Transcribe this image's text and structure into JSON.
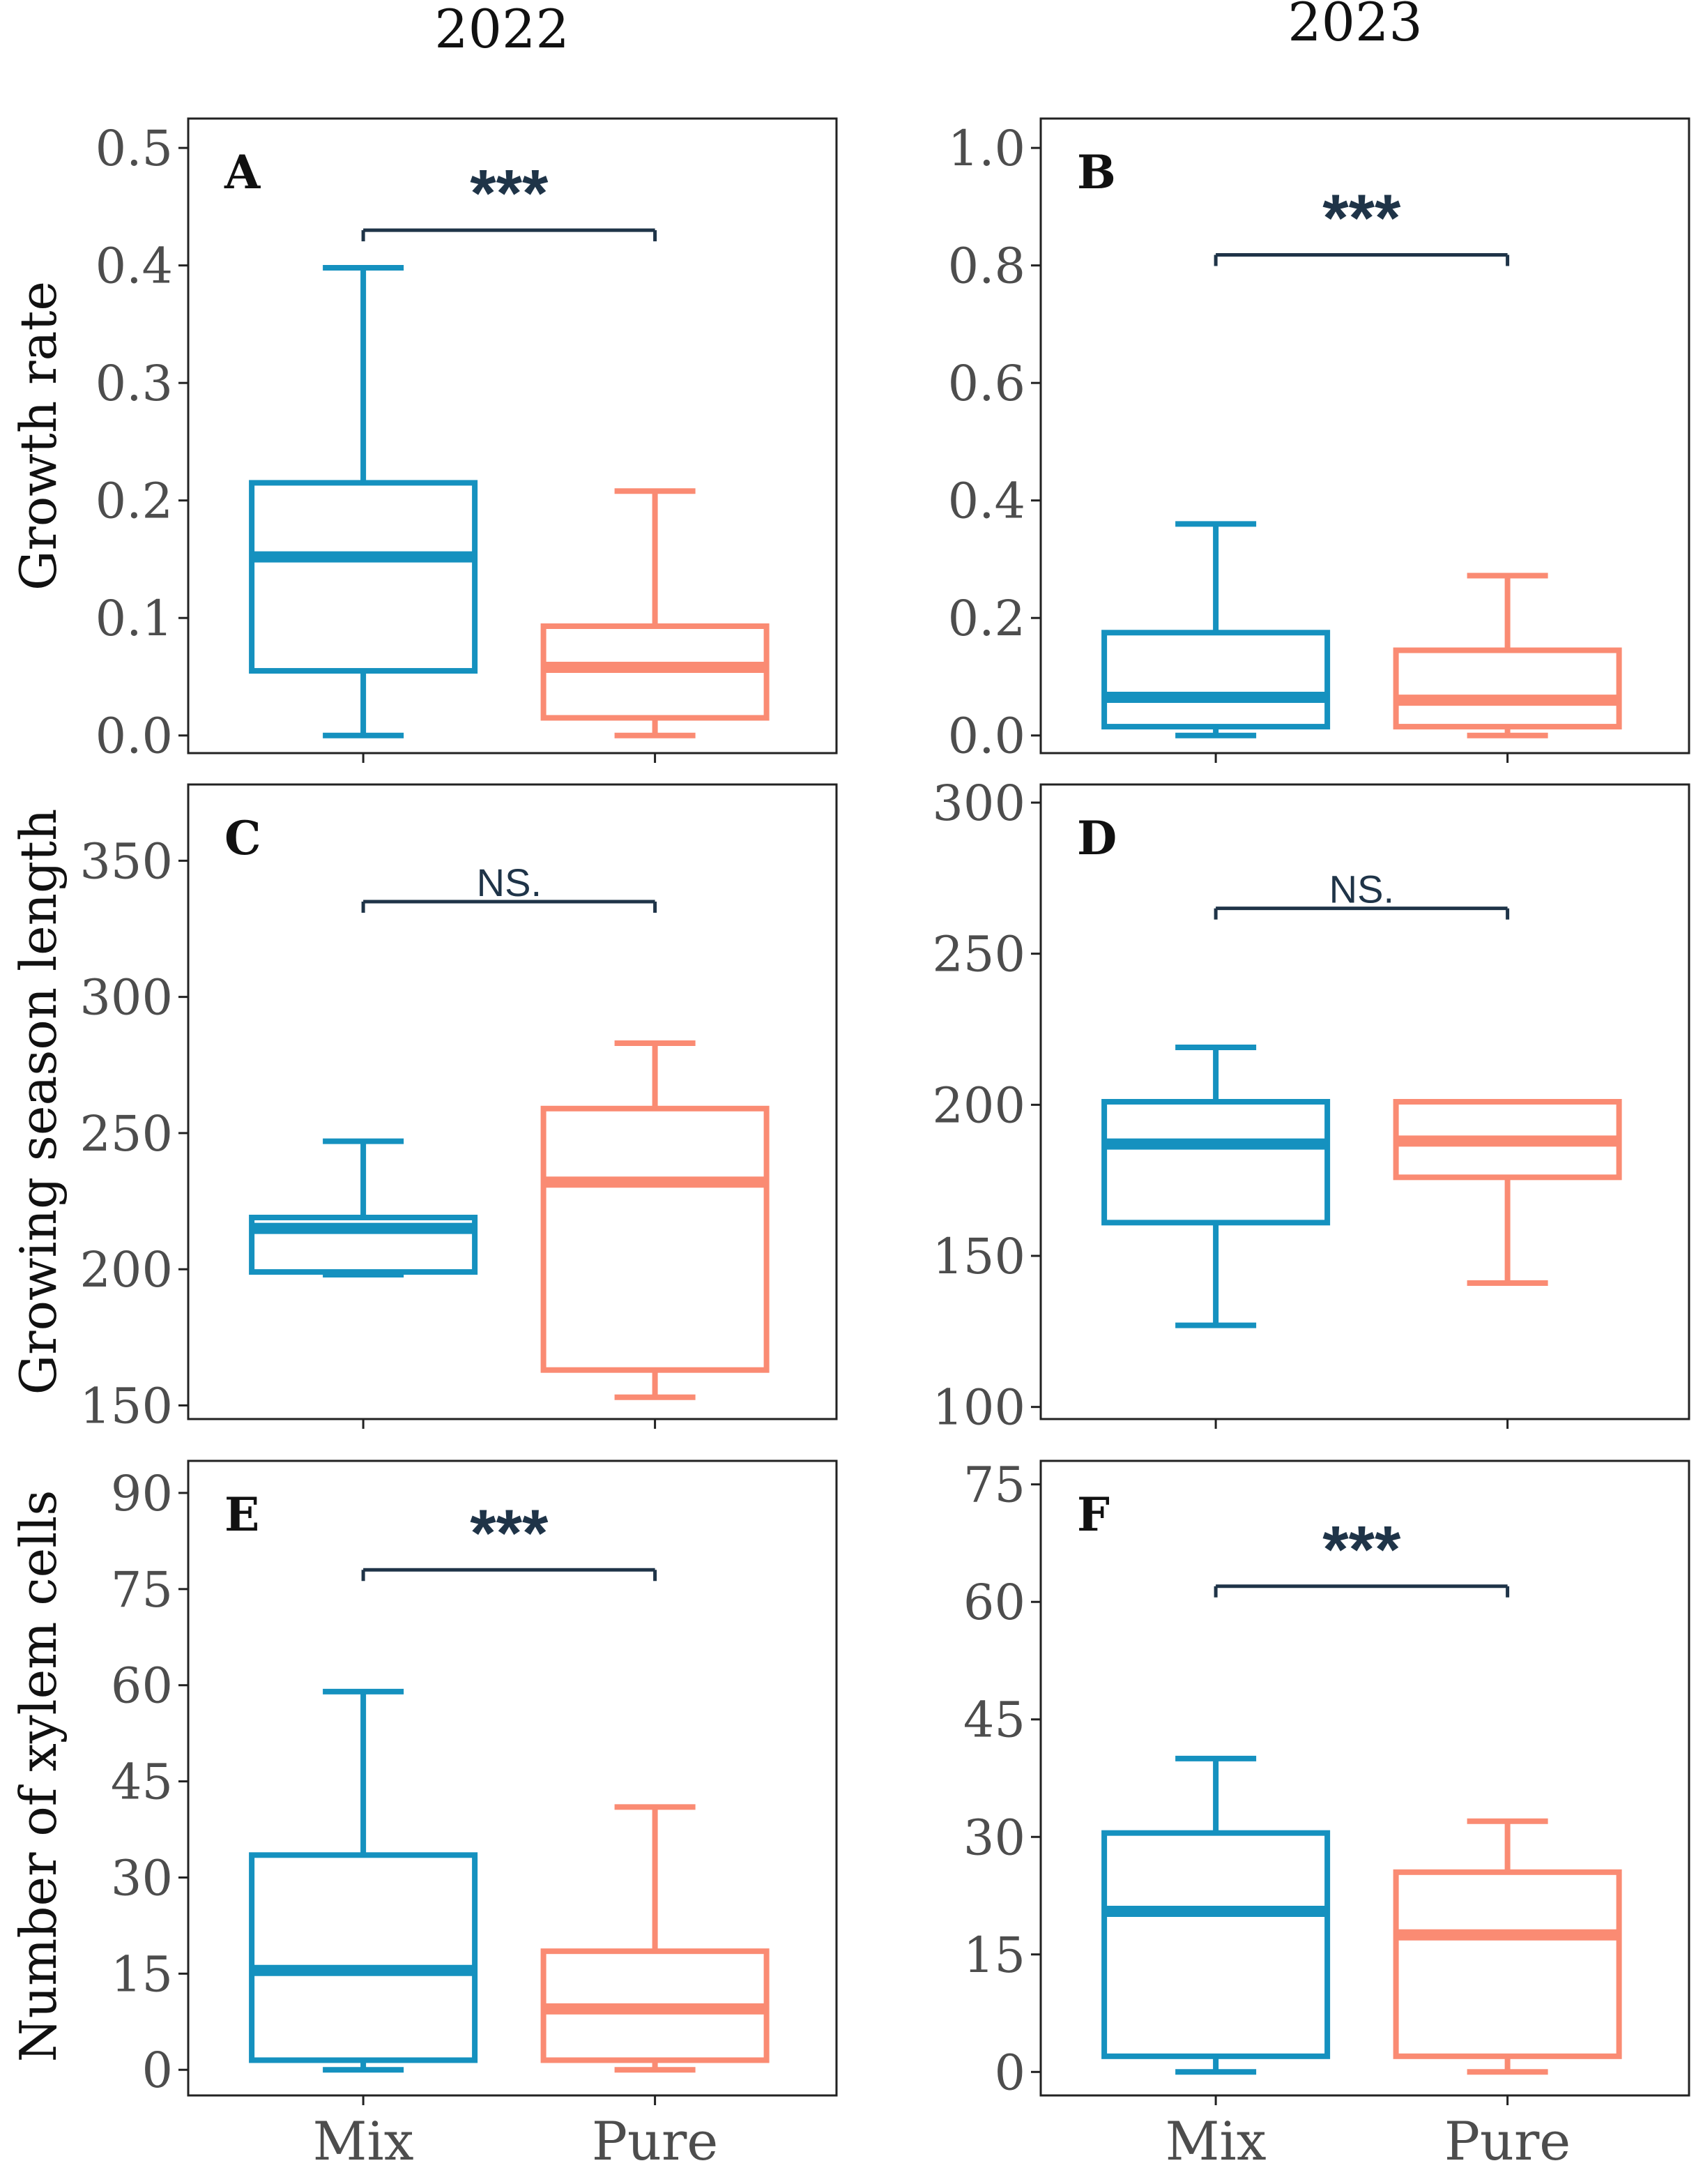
{
  "colors": {
    "mix": "#1591bf",
    "pure": "#fa8b73",
    "annotation": "#1f3448",
    "axis": "#222222",
    "tick_text": "#4d4d4d",
    "title_text": "#111111"
  },
  "column_titles": [
    "2022",
    "2023"
  ],
  "row_labels": [
    "Growth rate",
    "Growing season length",
    "Number of xylem cells"
  ],
  "categories": [
    "Mix",
    "Pure"
  ],
  "chart_data": [
    {
      "type": "box",
      "panel": "A",
      "year": "2022",
      "ylabel": "Growth rate",
      "ylim": [
        -0.015,
        0.525
      ],
      "yticks": [
        0.0,
        0.1,
        0.2,
        0.3,
        0.4,
        0.5
      ],
      "tick_labels": [
        "0.0",
        "0.1",
        "0.2",
        "0.3",
        "0.4",
        "0.5"
      ],
      "boxes": [
        {
          "group": "Mix",
          "whisker_low": 0.0,
          "q1": 0.055,
          "median": 0.152,
          "q3": 0.215,
          "whisker_high": 0.398
        },
        {
          "group": "Pure",
          "whisker_low": 0.0,
          "q1": 0.015,
          "median": 0.058,
          "q3": 0.093,
          "whisker_high": 0.208
        }
      ],
      "significance": {
        "label": "***",
        "y": 0.43
      }
    },
    {
      "type": "box",
      "panel": "B",
      "year": "2023",
      "ylabel": "",
      "ylim": [
        -0.03,
        1.05
      ],
      "yticks": [
        0.0,
        0.2,
        0.4,
        0.6,
        0.8,
        1.0
      ],
      "tick_labels": [
        "0.0",
        "0.2",
        "0.4",
        "0.6",
        "0.8",
        "1.0"
      ],
      "boxes": [
        {
          "group": "Mix",
          "whisker_low": 0.0,
          "q1": 0.015,
          "median": 0.065,
          "q3": 0.175,
          "whisker_high": 0.36
        },
        {
          "group": "Pure",
          "whisker_low": 0.0,
          "q1": 0.015,
          "median": 0.06,
          "q3": 0.145,
          "whisker_high": 0.272
        }
      ],
      "significance": {
        "label": "***",
        "y": 0.818
      }
    },
    {
      "type": "box",
      "panel": "C",
      "year": "2022",
      "ylabel": "Growing season length",
      "ylim": [
        145,
        378
      ],
      "yticks": [
        150,
        200,
        250,
        300,
        350
      ],
      "tick_labels": [
        "150",
        "200",
        "250",
        "300",
        "350"
      ],
      "boxes": [
        {
          "group": "Mix",
          "whisker_low": 198,
          "q1": 199,
          "median": 215,
          "q3": 219,
          "whisker_high": 247
        },
        {
          "group": "Pure",
          "whisker_low": 153,
          "q1": 163,
          "median": 232,
          "q3": 259,
          "whisker_high": 283
        }
      ],
      "significance": {
        "label": "NS.",
        "y": 335
      }
    },
    {
      "type": "box",
      "panel": "D",
      "year": "2023",
      "ylabel": "",
      "ylim": [
        96,
        306
      ],
      "yticks": [
        100,
        150,
        200,
        250,
        300
      ],
      "tick_labels": [
        "100",
        "150",
        "200",
        "250",
        "300"
      ],
      "boxes": [
        {
          "group": "Mix",
          "whisker_low": 127,
          "q1": 161,
          "median": 187,
          "q3": 201,
          "whisker_high": 219
        },
        {
          "group": "Pure",
          "whisker_low": 141,
          "q1": 176,
          "median": 188,
          "q3": 201,
          "whisker_high": 201
        }
      ],
      "significance": {
        "label": "NS.",
        "y": 265
      }
    },
    {
      "type": "box",
      "panel": "E",
      "year": "2022",
      "ylabel": "Number of xylem cells",
      "ylim": [
        -4,
        95
      ],
      "yticks": [
        0,
        15,
        30,
        45,
        60,
        75,
        90
      ],
      "tick_labels": [
        "0",
        "15",
        "30",
        "45",
        "60",
        "75",
        "90"
      ],
      "boxes": [
        {
          "group": "Mix",
          "whisker_low": 0,
          "q1": 1.5,
          "median": 15.5,
          "q3": 33.5,
          "whisker_high": 59
        },
        {
          "group": "Pure",
          "whisker_low": 0,
          "q1": 1.5,
          "median": 9.5,
          "q3": 18.5,
          "whisker_high": 41
        }
      ],
      "significance": {
        "label": "***",
        "y": 78
      }
    },
    {
      "type": "box",
      "panel": "F",
      "year": "2023",
      "ylabel": "",
      "ylim": [
        -3,
        78
      ],
      "yticks": [
        0,
        15,
        30,
        45,
        60,
        75
      ],
      "tick_labels": [
        "0",
        "15",
        "30",
        "45",
        "60",
        "75"
      ],
      "boxes": [
        {
          "group": "Mix",
          "whisker_low": 0,
          "q1": 2,
          "median": 20.5,
          "q3": 30.5,
          "whisker_high": 40
        },
        {
          "group": "Pure",
          "whisker_low": 0,
          "q1": 2,
          "median": 17.5,
          "q3": 25.5,
          "whisker_high": 32
        }
      ],
      "significance": {
        "label": "***",
        "y": 62
      }
    }
  ]
}
